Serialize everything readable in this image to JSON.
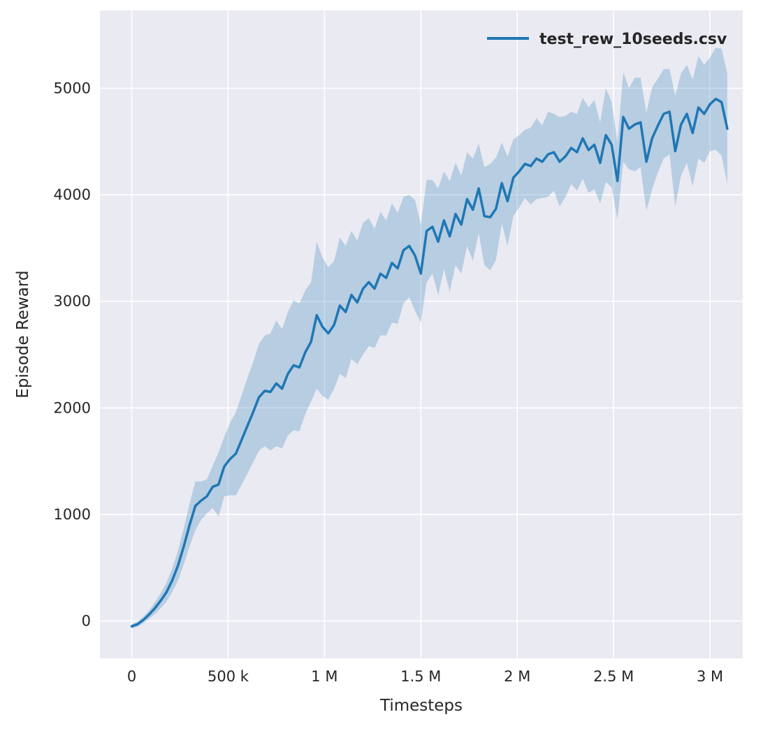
{
  "figure": {
    "background": "#ffffff",
    "plot_background": "#eaeaf2",
    "grid_color": "#ffffff",
    "text_color": "#262626",
    "accent": "#1f77b4"
  },
  "chart_data": {
    "type": "line",
    "title": "",
    "xlabel": "Timesteps",
    "ylabel": "Episode Reward",
    "grid": true,
    "legend_position": "upper right",
    "xlim": [
      -165000,
      3170000
    ],
    "ylim": [
      -350,
      5730
    ],
    "xticks": {
      "values": [
        0,
        500000,
        1000000,
        1500000,
        2000000,
        2500000,
        3000000
      ],
      "labels": [
        "0",
        "500 k",
        "1 M",
        "1.5 M",
        "2 M",
        "2.5 M",
        "3 M"
      ]
    },
    "yticks": {
      "values": [
        0,
        1000,
        2000,
        3000,
        4000,
        5000
      ],
      "labels": [
        "0",
        "1000",
        "2000",
        "3000",
        "4000",
        "5000"
      ]
    },
    "x": [
      0,
      30000,
      60000,
      90000,
      120000,
      150000,
      180000,
      210000,
      240000,
      270000,
      300000,
      330000,
      360000,
      390000,
      420000,
      450000,
      480000,
      510000,
      540000,
      570000,
      600000,
      630000,
      660000,
      690000,
      720000,
      750000,
      780000,
      810000,
      840000,
      870000,
      900000,
      930000,
      960000,
      990000,
      1020000,
      1050000,
      1080000,
      1110000,
      1140000,
      1170000,
      1200000,
      1230000,
      1260000,
      1290000,
      1320000,
      1350000,
      1380000,
      1410000,
      1440000,
      1470000,
      1500000,
      1530000,
      1560000,
      1590000,
      1620000,
      1650000,
      1680000,
      1710000,
      1740000,
      1770000,
      1800000,
      1830000,
      1860000,
      1890000,
      1920000,
      1950000,
      1980000,
      2010000,
      2040000,
      2070000,
      2100000,
      2130000,
      2160000,
      2190000,
      2220000,
      2250000,
      2280000,
      2310000,
      2340000,
      2370000,
      2400000,
      2430000,
      2460000,
      2490000,
      2520000,
      2550000,
      2580000,
      2610000,
      2640000,
      2670000,
      2700000,
      2730000,
      2760000,
      2790000,
      2820000,
      2850000,
      2880000,
      2910000,
      2940000,
      2970000,
      3000000,
      3030000,
      3060000,
      3090000
    ],
    "series": [
      {
        "name": "test_rew_10seeds.csv",
        "color": "#1f77b4",
        "line_width": 3.5,
        "band_opacity": 0.25,
        "values": [
          -50,
          -30,
          10,
          60,
          120,
          190,
          270,
          380,
          520,
          700,
          900,
          1080,
          1130,
          1170,
          1260,
          1280,
          1450,
          1520,
          1570,
          1700,
          1830,
          1960,
          2100,
          2160,
          2150,
          2230,
          2180,
          2320,
          2400,
          2380,
          2520,
          2620,
          2870,
          2760,
          2700,
          2780,
          2960,
          2900,
          3060,
          2990,
          3120,
          3180,
          3120,
          3260,
          3220,
          3360,
          3310,
          3480,
          3520,
          3430,
          3260,
          3660,
          3700,
          3560,
          3760,
          3610,
          3820,
          3720,
          3960,
          3860,
          4060,
          3800,
          3790,
          3870,
          4110,
          3940,
          4160,
          4220,
          4290,
          4270,
          4340,
          4310,
          4380,
          4400,
          4310,
          4360,
          4440,
          4400,
          4530,
          4420,
          4470,
          4300,
          4560,
          4470,
          4130,
          4730,
          4620,
          4660,
          4680,
          4310,
          4530,
          4650,
          4760,
          4780,
          4410,
          4660,
          4760,
          4580,
          4820,
          4760,
          4850,
          4900,
          4870,
          4620
        ],
        "band_halfwidth": [
          20,
          25,
          30,
          40,
          55,
          70,
          90,
          110,
          140,
          170,
          200,
          230,
          180,
          160,
          200,
          300,
          280,
          340,
          390,
          420,
          450,
          470,
          500,
          520,
          550,
          590,
          560,
          580,
          610,
          600,
          580,
          560,
          690,
          650,
          620,
          600,
          640,
          620,
          600,
          580,
          620,
          600,
          560,
          580,
          540,
          560,
          520,
          500,
          480,
          520,
          460,
          480,
          440,
          500,
          460,
          520,
          480,
          460,
          440,
          480,
          420,
          460,
          500,
          480,
          380,
          420,
          360,
          340,
          320,
          360,
          380,
          340,
          400,
          360,
          420,
          380,
          340,
          360,
          380,
          400,
          420,
          380,
          440,
          400,
          360,
          420,
          380,
          440,
          420,
          460,
          480,
          440,
          420,
          400,
          520,
          480,
          460,
          500,
          480,
          460,
          440,
          480,
          500,
          520
        ]
      }
    ]
  }
}
